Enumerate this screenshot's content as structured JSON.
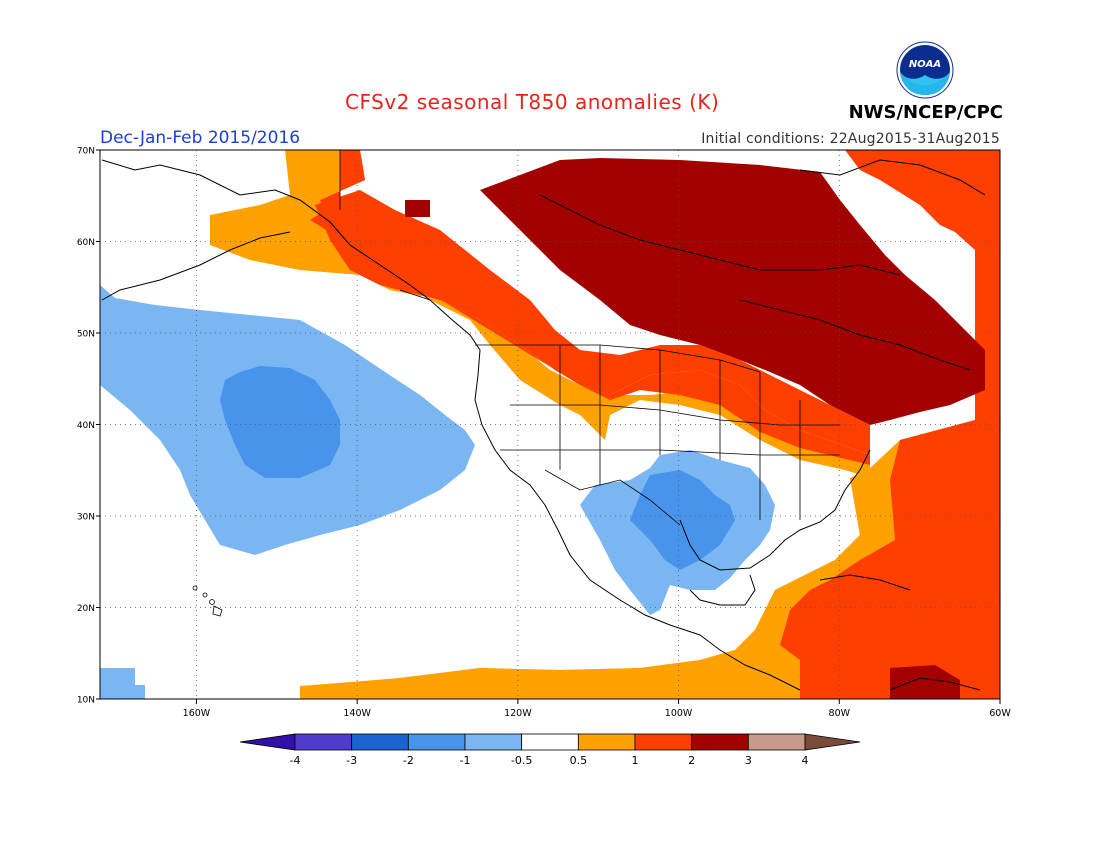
{
  "header": {
    "title": "CFSv2 seasonal T850 anomalies (K)",
    "season": "Dec-Jan-Feb 2015/2016",
    "initial_conditions": "Initial conditions: 22Aug2015-31Aug2015",
    "agency": "NWS/NCEP/CPC",
    "logo_text": "NOAA"
  },
  "map": {
    "lon_range": [
      -172,
      -60
    ],
    "lat_range": [
      10,
      70
    ],
    "lon_ticks": [
      {
        "value": -160,
        "label": "160W"
      },
      {
        "value": -140,
        "label": "140W"
      },
      {
        "value": -120,
        "label": "120W"
      },
      {
        "value": -100,
        "label": "100W"
      },
      {
        "value": -80,
        "label": "80W"
      },
      {
        "value": -60,
        "label": "60W"
      }
    ],
    "lat_ticks": [
      {
        "value": 10,
        "label": "10N"
      },
      {
        "value": 20,
        "label": "20N"
      },
      {
        "value": 30,
        "label": "30N"
      },
      {
        "value": 40,
        "label": "40N"
      },
      {
        "value": 50,
        "label": "50N"
      },
      {
        "value": 60,
        "label": "60N"
      },
      {
        "value": 70,
        "label": "70N"
      }
    ],
    "grid": "dotted"
  },
  "colorbar": {
    "labels": [
      "-4",
      "-3",
      "-2",
      "-1",
      "-0.5",
      "0.5",
      "1",
      "2",
      "3",
      "4"
    ],
    "colors": [
      "#3210a8",
      "#4f3ccd",
      "#1a64d2",
      "#4893ec",
      "#7ab7f2",
      "#ffffff",
      "#ffa100",
      "#ff3f00",
      "#a30000",
      "#c89a8a",
      "#7a4a3a"
    ]
  }
}
